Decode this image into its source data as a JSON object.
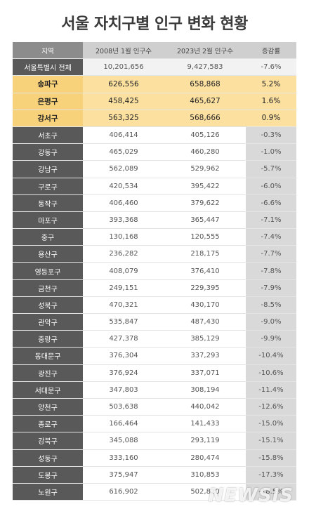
{
  "title": "서울 자치구별 인구 변화 현황",
  "headers": [
    "지역",
    "2008년 1월 인구수",
    "2023년 2월 인구수",
    "증감률"
  ],
  "rows": [
    {
      "region": "서울특별시 전체",
      "y2008": "10,201,656",
      "y2023": "9,427,583",
      "rate": "-7.6%",
      "type": "total"
    },
    {
      "region": "송파구",
      "y2008": "626,556",
      "y2023": "658,868",
      "rate": "5.2%",
      "type": "hl"
    },
    {
      "region": "은평구",
      "y2008": "458,425",
      "y2023": "465,627",
      "rate": "1.6%",
      "type": "hl"
    },
    {
      "region": "강서구",
      "y2008": "563,325",
      "y2023": "568,666",
      "rate": "0.9%",
      "type": "hl"
    },
    {
      "region": "서초구",
      "y2008": "406,414",
      "y2023": "405,126",
      "rate": "-0.3%",
      "type": "normal"
    },
    {
      "region": "강동구",
      "y2008": "465,029",
      "y2023": "460,280",
      "rate": "-1.0%",
      "type": "normal"
    },
    {
      "region": "강남구",
      "y2008": "562,089",
      "y2023": "529,962",
      "rate": "-5.7%",
      "type": "normal"
    },
    {
      "region": "구로구",
      "y2008": "420,534",
      "y2023": "395,422",
      "rate": "-6.0%",
      "type": "normal"
    },
    {
      "region": "동작구",
      "y2008": "406,460",
      "y2023": "379,622",
      "rate": "-6.6%",
      "type": "normal"
    },
    {
      "region": "마포구",
      "y2008": "393,368",
      "y2023": "365,447",
      "rate": "-7.1%",
      "type": "normal"
    },
    {
      "region": "중구",
      "y2008": "130,168",
      "y2023": "120,555",
      "rate": "-7.4%",
      "type": "normal"
    },
    {
      "region": "용산구",
      "y2008": "236,282",
      "y2023": "218,175",
      "rate": "-7.7%",
      "type": "normal"
    },
    {
      "region": "영등포구",
      "y2008": "408,079",
      "y2023": "376,410",
      "rate": "-7.8%",
      "type": "normal"
    },
    {
      "region": "금천구",
      "y2008": "249,151",
      "y2023": "229,395",
      "rate": "-7.9%",
      "type": "normal"
    },
    {
      "region": "성북구",
      "y2008": "470,321",
      "y2023": "430,170",
      "rate": "-8.5%",
      "type": "normal"
    },
    {
      "region": "관악구",
      "y2008": "535,847",
      "y2023": "487,430",
      "rate": "-9.0%",
      "type": "normal"
    },
    {
      "region": "중랑구",
      "y2008": "427,378",
      "y2023": "385,129",
      "rate": "-9.9%",
      "type": "normal"
    },
    {
      "region": "동대문구",
      "y2008": "376,304",
      "y2023": "337,293",
      "rate": "-10.4%",
      "type": "normal"
    },
    {
      "region": "광진구",
      "y2008": "376,924",
      "y2023": "337,071",
      "rate": "-10.6%",
      "type": "normal"
    },
    {
      "region": "서대문구",
      "y2008": "347,803",
      "y2023": "308,194",
      "rate": "-11.4%",
      "type": "normal"
    },
    {
      "region": "양천구",
      "y2008": "503,638",
      "y2023": "440,042",
      "rate": "-12.6%",
      "type": "normal"
    },
    {
      "region": "종로구",
      "y2008": "166,464",
      "y2023": "141,433",
      "rate": "-15.0%",
      "type": "normal"
    },
    {
      "region": "강북구",
      "y2008": "345,088",
      "y2023": "293,119",
      "rate": "-15.1%",
      "type": "normal"
    },
    {
      "region": "성동구",
      "y2008": "333,160",
      "y2023": "280,474",
      "rate": "-15.8%",
      "type": "normal"
    },
    {
      "region": "도봉구",
      "y2008": "375,947",
      "y2023": "310,853",
      "rate": "-17.3%",
      "type": "normal"
    },
    {
      "region": "노원구",
      "y2008": "616,902",
      "y2023": "502,820",
      "rate": "-18.5%",
      "type": "normal"
    }
  ],
  "watermark": "NEWSIS"
}
